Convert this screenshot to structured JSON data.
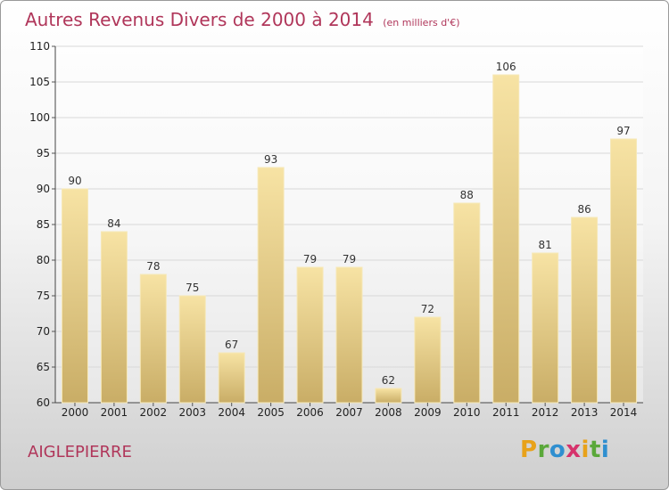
{
  "title": "Autres Revenus Divers de 2000 à 2014",
  "title_unit": "(en milliers d'€)",
  "location": "AIGLEPIERRE",
  "logo_text": "Proxiti",
  "colors": {
    "title": "#b0365a",
    "bar_light": "#f7e3a4",
    "bar_dark": "#c9ad66",
    "grid": "#d8d8d8"
  },
  "chart_data": {
    "type": "bar",
    "title": "Autres Revenus Divers de 2000 à 2014",
    "subtitle": "(en milliers d'€)",
    "categories": [
      "2000",
      "2001",
      "2002",
      "2003",
      "2004",
      "2005",
      "2006",
      "2007",
      "2008",
      "2009",
      "2010",
      "2011",
      "2012",
      "2013",
      "2014"
    ],
    "values": [
      90,
      84,
      78,
      75,
      67,
      93,
      79,
      79,
      62,
      72,
      88,
      106,
      81,
      86,
      97
    ],
    "ylim": [
      60,
      110
    ],
    "yticks": [
      60,
      65,
      70,
      75,
      80,
      85,
      90,
      95,
      100,
      105,
      110
    ],
    "grid": true,
    "legend": "none"
  }
}
